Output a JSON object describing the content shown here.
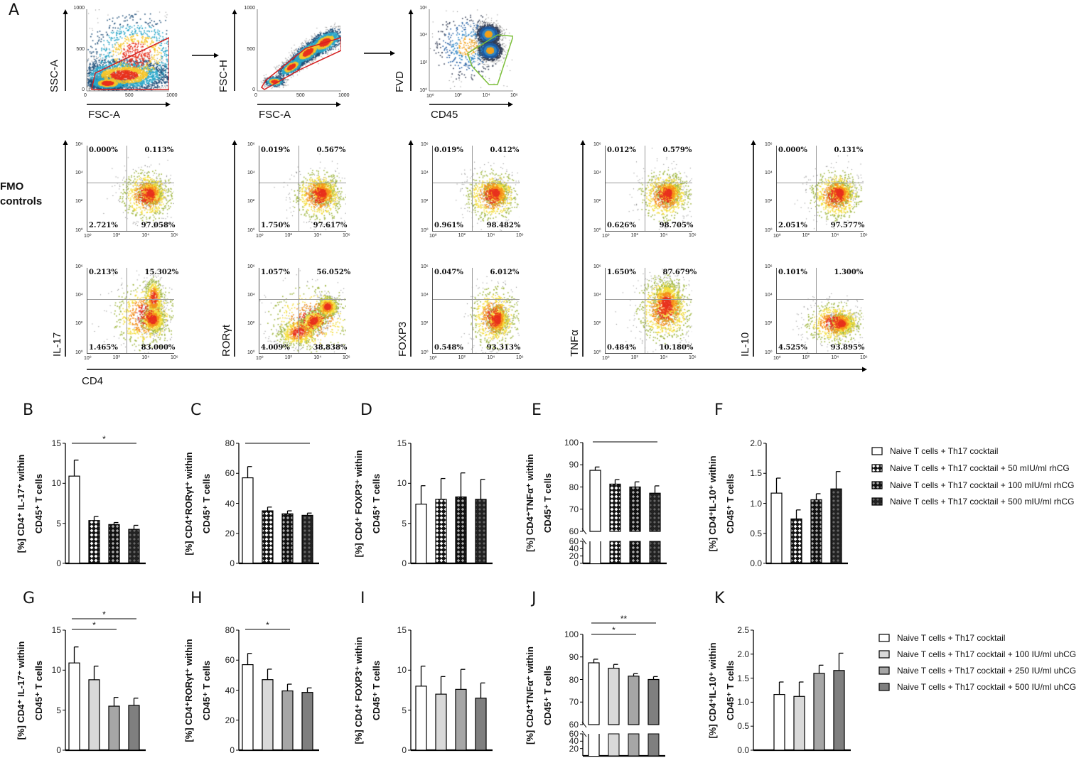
{
  "panel_A": {
    "letter": "A",
    "gating": [
      {
        "ylabel": "SSC-A",
        "xlabel": "FSC-A",
        "xticks": [
          "0",
          "500",
          "1000"
        ],
        "yticks": [
          "1000",
          "500",
          "0"
        ]
      },
      {
        "ylabel": "FSC-H",
        "xlabel": "FSC-A",
        "xticks": [
          "0",
          "500",
          "1000"
        ],
        "yticks": [
          "1000",
          "500",
          "0"
        ]
      },
      {
        "ylabel": "FVD",
        "xlabel": "CD45",
        "xticks": [
          "10⁰",
          "10²",
          "10⁴",
          "10⁶"
        ],
        "yticks": [
          "10⁶",
          "10⁴",
          "10²",
          "10⁰"
        ]
      }
    ],
    "fmo_label": [
      "FMO",
      "controls"
    ],
    "xlabel": "CD4",
    "log_ticks_x": [
      "10⁰",
      "10²",
      "10⁴",
      "10⁶"
    ],
    "log_ticks_y": [
      "10⁶",
      "10⁴",
      "10²",
      "10⁰"
    ],
    "markers": [
      {
        "name": "IL-17",
        "fmo": [
          "0.000%",
          "0.113%",
          "2.721%",
          "97.058%"
        ],
        "stained": [
          "0.213%",
          "15.302%",
          "1.465%",
          "83.000%"
        ]
      },
      {
        "name": "RORγt",
        "fmo": [
          "0.019%",
          "0.567%",
          "1.750%",
          "97.617%"
        ],
        "stained": [
          "1.057%",
          "56.052%",
          "4.009%",
          "38.838%"
        ]
      },
      {
        "name": "FOXP3",
        "fmo": [
          "0.019%",
          "0.412%",
          "0.961%",
          "98.482%"
        ],
        "stained": [
          "0.047%",
          "6.012%",
          "0.548%",
          "93.313%"
        ]
      },
      {
        "name": "TNFα",
        "fmo": [
          "0.012%",
          "0.579%",
          "0.626%",
          "98.705%"
        ],
        "stained": [
          "1.650%",
          "87.679%",
          "0.484%",
          "10.180%"
        ]
      },
      {
        "name": "IL-10",
        "fmo": [
          "0.000%",
          "0.131%",
          "2.051%",
          "97.577%"
        ],
        "stained": [
          "0.101%",
          "1.300%",
          "4.525%",
          "93.895%"
        ]
      }
    ]
  },
  "legends": [
    {
      "items": [
        {
          "label": "Naive T cells + Th17 cocktail",
          "fill": "white"
        },
        {
          "label": "Naive T cells + Th17 cocktail + 50 mIU/ml rhCG",
          "fill": "pat1"
        },
        {
          "label": "Naive T cells + Th17 cocktail + 100 mIU/ml rhCG",
          "fill": "pat2"
        },
        {
          "label": "Naive T cells + Th17 cocktail + 500 mIU/ml rhCG",
          "fill": "pat3"
        }
      ]
    },
    {
      "items": [
        {
          "label": "Naive T cells + Th17 cocktail",
          "fill": "#ffffff"
        },
        {
          "label": "Naive T cells + Th17 cocktail + 100 IU/ml uhCG",
          "fill": "#d9d9d9"
        },
        {
          "label": "Naive T cells + Th17 cocktail + 250 IU/ml uhCG",
          "fill": "#a6a6a6"
        },
        {
          "label": "Naive T cells + Th17 cocktail + 500 IU/ml uhCG",
          "fill": "#7f7f7f"
        }
      ]
    }
  ],
  "chart_data": [
    {
      "type": "bar",
      "letter": "B",
      "ylabel": [
        "[%] CD4⁺ IL-17⁺ within",
        "CD45⁺ T cells"
      ],
      "ylim": [
        0,
        15
      ],
      "yticks": [
        0,
        5,
        10,
        15
      ],
      "values": [
        10.9,
        5.35,
        4.85,
        4.25
      ],
      "errors": [
        2.0,
        0.5,
        0.25,
        0.5
      ],
      "fills": [
        "white",
        "pat1",
        "pat2",
        "pat3"
      ],
      "significance": [
        {
          "from": 0,
          "to": 3,
          "label": "*"
        }
      ]
    },
    {
      "type": "bar",
      "letter": "C",
      "ylabel": [
        "[%]  CD4⁺RORγt⁺ within",
        "CD45⁺ T cells"
      ],
      "ylim": [
        0,
        80
      ],
      "yticks": [
        0,
        20,
        40,
        60,
        80
      ],
      "values": [
        57,
        35,
        33,
        32
      ],
      "errors": [
        7.5,
        2.5,
        2,
        1.5
      ],
      "fills": [
        "white",
        "pat1",
        "pat2",
        "pat3"
      ],
      "significance": [
        {
          "from": 0,
          "to": 3,
          "label": ""
        }
      ]
    },
    {
      "type": "bar",
      "letter": "D",
      "ylabel": [
        "[%] CD4⁺ FOXP3⁺ within",
        "CD45⁺ T cells"
      ],
      "ylim": [
        0,
        15
      ],
      "yticks": [
        0,
        5,
        10,
        15
      ],
      "values": [
        7.4,
        8.0,
        8.3,
        8.0
      ],
      "errors": [
        2.3,
        2.6,
        3.0,
        2.5
      ],
      "fills": [
        "white",
        "pat1",
        "pat2",
        "pat3"
      ],
      "significance": []
    },
    {
      "type": "bar",
      "letter": "E",
      "ylabel": [
        "[%] CD4⁺TNFα⁺ within",
        "CD45⁺ T cells"
      ],
      "ylim": [
        0,
        100
      ],
      "axis_break": 60,
      "yticks": [
        60,
        70,
        80,
        90,
        100
      ],
      "lower_ticks": [
        0,
        20,
        40,
        60
      ],
      "values": [
        87.5,
        81.3,
        80,
        77.2
      ],
      "errors": [
        1.5,
        2,
        2.3,
        3.3
      ],
      "fills": [
        "white",
        "pat1",
        "pat2",
        "pat3"
      ],
      "significance": [
        {
          "from": 0,
          "to": 3,
          "label": ""
        }
      ]
    },
    {
      "type": "bar",
      "letter": "F",
      "ylabel": [
        "[%] CD4⁺IL-10⁺ within",
        "CD45⁺ T cells"
      ],
      "ylim": [
        0,
        2
      ],
      "yticks": [
        "0.0",
        "0.5",
        "1.0",
        "1.5",
        "2.0"
      ],
      "values": [
        1.17,
        0.74,
        1.06,
        1.24
      ],
      "errors": [
        0.25,
        0.15,
        0.1,
        0.29
      ],
      "fills": [
        "white",
        "pat1",
        "pat2",
        "pat3"
      ],
      "significance": []
    },
    {
      "type": "bar",
      "letter": "G",
      "ylabel": [
        "[%] CD4⁺ IL-17⁺ within",
        "CD45⁺ T cells"
      ],
      "ylim": [
        0,
        15
      ],
      "yticks": [
        0,
        5,
        10,
        15
      ],
      "values": [
        10.9,
        8.8,
        5.5,
        5.6
      ],
      "errors": [
        2.0,
        1.7,
        1.1,
        0.9
      ],
      "fills": [
        "#ffffff",
        "#d9d9d9",
        "#a6a6a6",
        "#7f7f7f"
      ],
      "significance": [
        {
          "from": 0,
          "to": 3,
          "label": "*"
        },
        {
          "from": 0,
          "to": 2,
          "label": "*"
        }
      ]
    },
    {
      "type": "bar",
      "letter": "H",
      "ylabel": [
        "[%]  CD4⁺RORγt⁺ within",
        "CD45⁺ T cells"
      ],
      "ylim": [
        0,
        80
      ],
      "yticks": [
        0,
        20,
        40,
        60,
        80
      ],
      "values": [
        57,
        47,
        39.5,
        38.5
      ],
      "errors": [
        7.5,
        7,
        4.5,
        3
      ],
      "fills": [
        "#ffffff",
        "#d9d9d9",
        "#a6a6a6",
        "#7f7f7f"
      ],
      "significance": [
        {
          "from": 0,
          "to": 2,
          "label": "*"
        }
      ]
    },
    {
      "type": "bar",
      "letter": "I",
      "ylabel": [
        "[%] CD4⁺ FOXP3⁺ within",
        "CD45⁺ T cells"
      ],
      "ylim": [
        0,
        15
      ],
      "yticks": [
        0,
        5,
        10,
        15
      ],
      "values": [
        8.0,
        7.0,
        7.6,
        6.5
      ],
      "errors": [
        2.5,
        2.2,
        2.5,
        1.9
      ],
      "fills": [
        "#ffffff",
        "#d9d9d9",
        "#a6a6a6",
        "#7f7f7f"
      ],
      "significance": []
    },
    {
      "type": "bar",
      "letter": "J",
      "ylabel": [
        "[%] CD4⁺TNFα⁺ within",
        "CD45⁺ T cells"
      ],
      "ylim": [
        0,
        100
      ],
      "axis_break": 60,
      "yticks": [
        60,
        70,
        80,
        90,
        100
      ],
      "lower_ticks": [
        20,
        40,
        60
      ],
      "values": [
        87.4,
        85,
        81.5,
        80
      ],
      "errors": [
        1.6,
        1.7,
        1.1,
        1.3
      ],
      "fills": [
        "#ffffff",
        "#d9d9d9",
        "#a6a6a6",
        "#7f7f7f"
      ],
      "significance": [
        {
          "from": 0,
          "to": 3,
          "label": "**"
        },
        {
          "from": 0,
          "to": 2,
          "label": "*"
        }
      ]
    },
    {
      "type": "bar",
      "letter": "K",
      "ylabel": [
        "[%] CD4⁺IL-10⁺ within",
        "CD45⁺ T cells"
      ],
      "ylim": [
        0,
        2.5
      ],
      "yticks": [
        "0.0",
        "0.5",
        "1.0",
        "1.5",
        "2.0",
        "2.5"
      ],
      "values": [
        1.16,
        1.12,
        1.6,
        1.66
      ],
      "errors": [
        0.26,
        0.3,
        0.17,
        0.36
      ],
      "fills": [
        "#ffffff",
        "#d9d9d9",
        "#a6a6a6",
        "#7f7f7f"
      ],
      "significance": []
    }
  ]
}
